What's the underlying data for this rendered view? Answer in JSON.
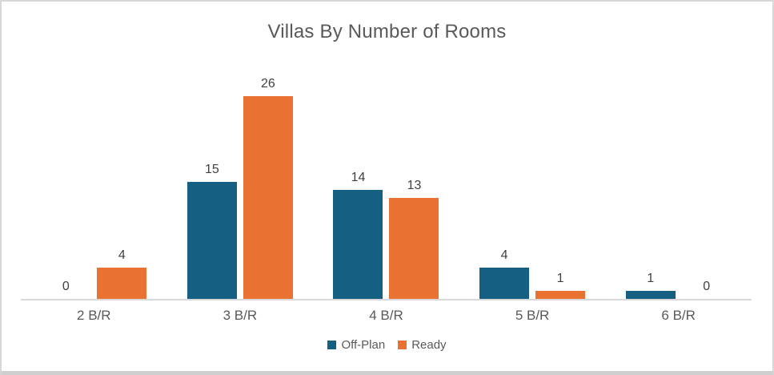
{
  "chart_data": {
    "type": "bar",
    "title": "Villas By Number of Rooms",
    "categories": [
      "2 B/R",
      "3 B/R",
      "4 B/R",
      "5 B/R",
      "6 B/R"
    ],
    "series": [
      {
        "name": "Off-Plan",
        "color": "#156082",
        "values": [
          0,
          15,
          14,
          4,
          1
        ]
      },
      {
        "name": "Ready",
        "color": "#E97132",
        "values": [
          4,
          26,
          13,
          1,
          0
        ]
      }
    ],
    "ylim": [
      0,
      26
    ],
    "xlabel": "",
    "ylabel": "",
    "grid": false,
    "data_labels": true,
    "legend_position": "bottom",
    "title_color": "#595959",
    "data_label_color": "#404040",
    "tick_label_color": "#595959",
    "axis_line_color": "#D9D9D9",
    "frame_border_color": "#D7D7D7"
  }
}
